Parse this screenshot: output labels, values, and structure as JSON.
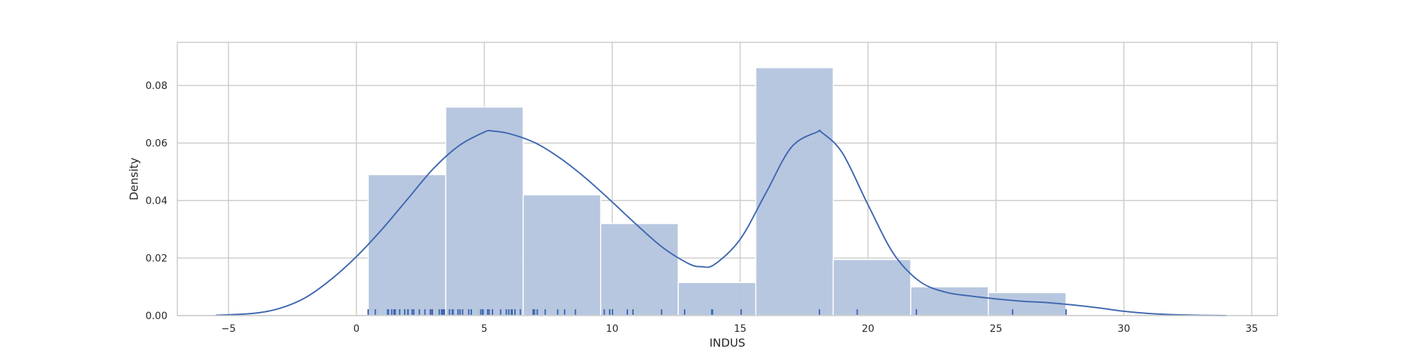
{
  "chart_data": {
    "type": "histogram",
    "xlabel": "INDUS",
    "ylabel": "Density",
    "xlim": [
      -7,
      36
    ],
    "ylim": [
      0,
      0.095
    ],
    "x_ticks": [
      -5,
      0,
      5,
      10,
      15,
      20,
      25,
      30,
      35
    ],
    "x_tick_labels": [
      "−5",
      "0",
      "5",
      "10",
      "15",
      "20",
      "25",
      "30",
      "35"
    ],
    "y_ticks": [
      0.0,
      0.02,
      0.04,
      0.06,
      0.08
    ],
    "y_tick_labels": [
      "0.00",
      "0.02",
      "0.04",
      "0.06",
      "0.08"
    ],
    "grid": true,
    "bins": [
      {
        "x0": 0.46,
        "x1": 3.49,
        "value": 0.049
      },
      {
        "x0": 3.49,
        "x1": 6.52,
        "value": 0.0725
      },
      {
        "x0": 6.52,
        "x1": 9.55,
        "value": 0.042
      },
      {
        "x0": 9.55,
        "x1": 12.58,
        "value": 0.032
      },
      {
        "x0": 12.58,
        "x1": 15.61,
        "value": 0.0115
      },
      {
        "x0": 15.61,
        "x1": 18.64,
        "value": 0.0862
      },
      {
        "x0": 18.64,
        "x1": 21.67,
        "value": 0.0195
      },
      {
        "x0": 21.67,
        "x1": 24.7,
        "value": 0.01
      },
      {
        "x0": 24.7,
        "x1": 27.74,
        "value": 0.008
      }
    ],
    "kde": {
      "x": [
        -5.5,
        -4,
        -3,
        -2,
        -1,
        0,
        1,
        2,
        3,
        4,
        5,
        5.3,
        6,
        7,
        8,
        9,
        10,
        11,
        12,
        13,
        13.5,
        14,
        15,
        16,
        17,
        18,
        18.2,
        19,
        20,
        21,
        22,
        23,
        24,
        25,
        26,
        27,
        28,
        29,
        30,
        31,
        32,
        33,
        34
      ],
      "y": [
        0.0001,
        0.0008,
        0.0025,
        0.0062,
        0.0125,
        0.0205,
        0.03,
        0.0405,
        0.051,
        0.059,
        0.0638,
        0.0642,
        0.0632,
        0.06,
        0.0545,
        0.0475,
        0.0395,
        0.0312,
        0.0235,
        0.018,
        0.017,
        0.0178,
        0.0265,
        0.0425,
        0.0585,
        0.0638,
        0.0636,
        0.0565,
        0.0385,
        0.0215,
        0.012,
        0.0082,
        0.0068,
        0.0058,
        0.005,
        0.0045,
        0.0037,
        0.0027,
        0.0015,
        0.0007,
        0.0003,
        0.0001,
        0.0
      ]
    },
    "rug": [
      0.46,
      0.74,
      1.22,
      1.25,
      1.38,
      1.47,
      1.52,
      1.69,
      1.89,
      2.01,
      2.02,
      2.18,
      2.24,
      2.46,
      2.68,
      2.89,
      2.95,
      2.97,
      3.24,
      3.33,
      3.37,
      3.41,
      3.44,
      3.64,
      3.75,
      3.78,
      3.97,
      4.05,
      4.15,
      4.39,
      4.49,
      4.86,
      4.93,
      4.95,
      5.13,
      5.19,
      5.32,
      5.64,
      5.86,
      5.96,
      6.06,
      6.07,
      6.09,
      6.2,
      6.41,
      6.91,
      6.96,
      7.07,
      7.38,
      7.87,
      8.14,
      8.56,
      9.69,
      9.9,
      10.01,
      10.59,
      10.81,
      11.93,
      12.83,
      13.89,
      13.92,
      15.04,
      18.1,
      19.58,
      21.89,
      25.65,
      27.74
    ],
    "colors": {
      "bar_fill": "#b4c4de",
      "bar_edge": "#ffffff",
      "line": "#4068b0",
      "rug": "#4068b0",
      "grid": "#cccccc",
      "frame": "#cccccc"
    }
  }
}
